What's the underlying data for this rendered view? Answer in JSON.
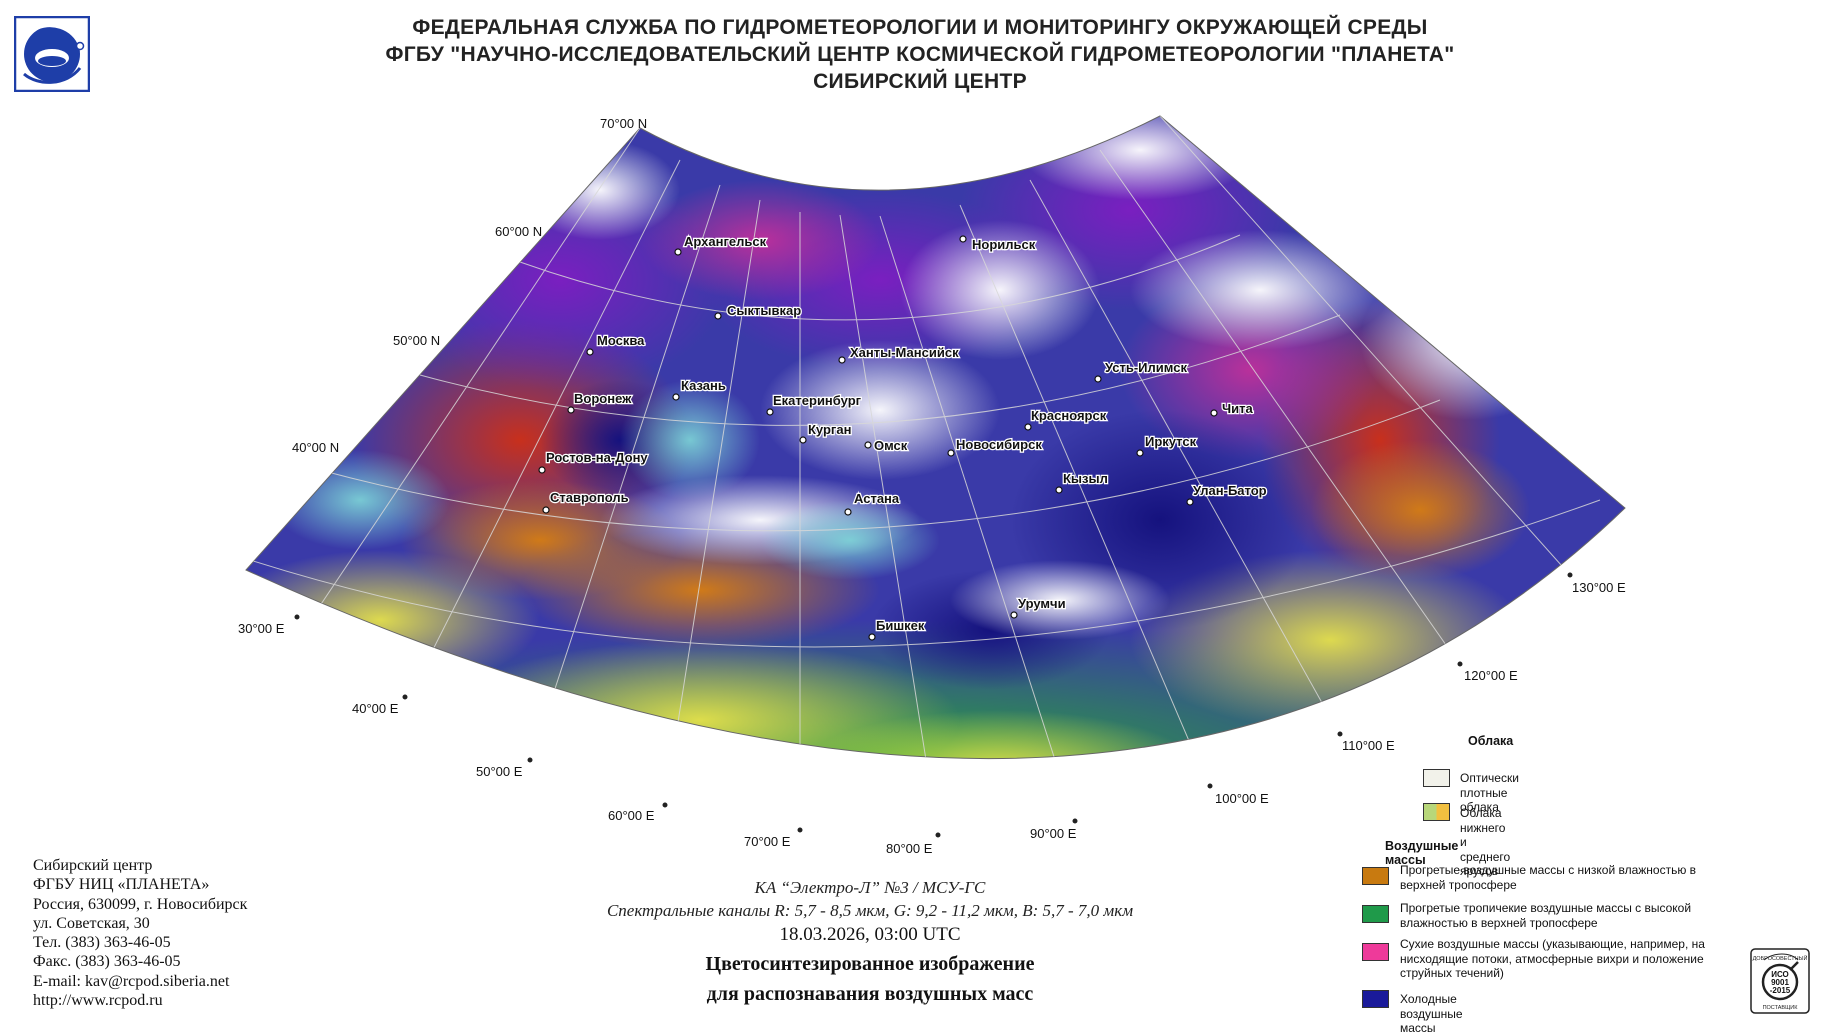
{
  "header": {
    "line1": "ФЕДЕРАЛЬНАЯ СЛУЖБА ПО ГИДРОМЕТЕОРОЛОГИИ И МОНИТОРИНГУ ОКРУЖАЮЩЕЙ СРЕДЫ",
    "line2": "ФГБУ \"НАУЧНО-ИССЛЕДОВАТЕЛЬСКИЙ ЦЕНТР КОСМИЧЕСКОЙ ГИДРОМЕТЕОРОЛОГИИ \"ПЛАНЕТА\"",
    "line3": "СИБИРСКИЙ ЦЕНТР"
  },
  "logo_icon": "planeta-logo-icon",
  "map": {
    "latitude_labels": [
      "70°00 N",
      "60°00 N",
      "50°00 N",
      "40°00 N"
    ],
    "longitude_labels": [
      "30°00 E",
      "40°00 E",
      "50°00 E",
      "60°00 E",
      "70°00 E",
      "80°00 E",
      "90°00 E",
      "100°00 E",
      "110°00 E",
      "120°00 E",
      "130°00 E"
    ],
    "cities": [
      "Архангельск",
      "Норильск",
      "Сыктывкар",
      "Москва",
      "Ханты-Мансийск",
      "Усть-Илимск",
      "Казань",
      "Воронеж",
      "Екатеринбург",
      "Красноярск",
      "Чита",
      "Курган",
      "Омск",
      "Новосибирск",
      "Иркутск",
      "Ростов-на-Дону",
      "Кызыл",
      "Улан-Батор",
      "Ставрополь",
      "Астана",
      "Урумчи",
      "Бишкек"
    ]
  },
  "caption": {
    "satellite": "КА “Электро-Л” №3 / МСУ-ГС",
    "channels": "Спектральные каналы R: 5,7 - 8,5 мкм, G: 9,2 - 11,2 мкм, B: 5,7 - 7,0 мкм",
    "datetime": "18.03.2026, 03:00 UTC",
    "title_line1": "Цветосинтезированное изображение",
    "title_line2": "для распознавания воздушных масс"
  },
  "contact": {
    "lines": [
      "Сибирский центр",
      "ФГБУ НИЦ «ПЛАНЕТА»",
      "Россия, 630099, г. Новосибирск",
      "ул. Советская, 30",
      "Тел. (383) 363-46-05",
      "Факс. (383) 363-46-05",
      "E-mail: kav@rcpod.siberia.net",
      "http://www.rcpod.ru"
    ]
  },
  "legend": {
    "clouds_heading": "Облака",
    "clouds": [
      {
        "label": "Оптически плотные облака",
        "color": "#f2f2ea"
      },
      {
        "label": "Облака нижнего и среднего ярусов",
        "colors": [
          "#b8d77a",
          "#f2c040"
        ]
      }
    ],
    "airmass_heading": "Воздушные массы",
    "airmasses": [
      {
        "label": "Прогретые воздушные массы с низкой влажностью в верхней тропосфере",
        "color": "#c87a10"
      },
      {
        "label": "Прогретые тропичекие воздушные массы с высокой влажностью в верхней тропосфере",
        "color": "#1f9a4a"
      },
      {
        "label": "Сухие воздушные массы (указывающие, например, на нисходящие потоки, атмосферные вихри и положение струйных течений)",
        "color": "#ee3a9a"
      },
      {
        "label": "Холодные воздушные массы",
        "color": "#1a1a9a"
      }
    ]
  },
  "iso_badge": {
    "top_text": "ДОБРОСОВЕСТНЫЙ",
    "line1": "ИСО",
    "line2": "9001",
    "line3": "-2015",
    "bottom_text": "ПОСТАВЩИК"
  }
}
